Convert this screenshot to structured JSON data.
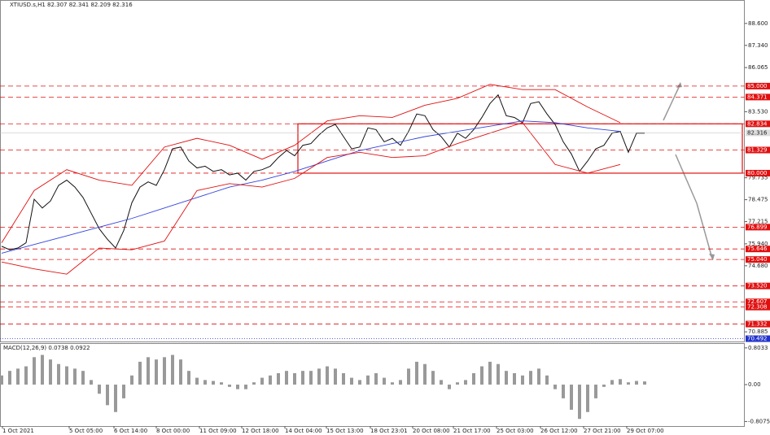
{
  "chart_data": {
    "type": "price",
    "title": "XTIUSD.s,H1  82.307 82.341 82.209 82.316",
    "xlim": [
      -0.2,
      91.3
    ],
    "ylim": [
      70.33,
      89.9
    ],
    "yticks": [
      {
        "value": 88.6,
        "label": "88.600"
      },
      {
        "value": 87.34,
        "label": "87.340"
      },
      {
        "value": 86.065,
        "label": "86.065"
      },
      {
        "value": 83.53,
        "label": "83.530"
      },
      {
        "value": 79.735,
        "label": "79.735"
      },
      {
        "value": 78.475,
        "label": "78.475"
      },
      {
        "value": 77.215,
        "label": "77.215"
      },
      {
        "value": 75.94,
        "label": "75.940"
      },
      {
        "value": 74.68,
        "label": "74.680"
      },
      {
        "value": 70.885,
        "label": "70.885"
      }
    ],
    "xticks": [
      {
        "value": 0.1,
        "label": "1 Oct 2021"
      },
      {
        "value": 8.3,
        "label": "5 Oct 05:00"
      },
      {
        "value": 13.8,
        "label": "6 Oct 14:00"
      },
      {
        "value": 19,
        "label": "8 Oct 00:00"
      },
      {
        "value": 24.3,
        "label": "11 Oct 09:00"
      },
      {
        "value": 29.5,
        "label": "12 Oct 18:00"
      },
      {
        "value": 34.8,
        "label": "14 Oct 04:00"
      },
      {
        "value": 39.9,
        "label": "15 Oct 13:00"
      },
      {
        "value": 45.3,
        "label": "18 Oct 23:01"
      },
      {
        "value": 50.5,
        "label": "20 Oct 08:00"
      },
      {
        "value": 55.5,
        "label": "21 Oct 17:00"
      },
      {
        "value": 60.8,
        "label": "25 Oct 03:00"
      },
      {
        "value": 66.2,
        "label": "26 Oct 12:00"
      },
      {
        "value": 71.5,
        "label": "27 Oct 21:00"
      },
      {
        "value": 76.8,
        "label": "29 Oct 07:00"
      }
    ],
    "last_price": {
      "value": 82.316,
      "label": "82.316"
    },
    "levels": [
      {
        "value": 85.0,
        "label": "85.000"
      },
      {
        "value": 84.371,
        "label": "84.371"
      },
      {
        "value": 82.834,
        "label": "82.834"
      },
      {
        "value": 81.329,
        "label": "81.329"
      },
      {
        "value": 80.0,
        "label": "80.000"
      },
      {
        "value": 76.899,
        "label": "76.899"
      },
      {
        "value": 75.646,
        "label": "75.646"
      },
      {
        "value": 75.04,
        "label": "75.040"
      },
      {
        "value": 73.52,
        "label": "73.520"
      },
      {
        "value": 72.607,
        "label": "72.607"
      },
      {
        "value": 72.308,
        "label": "72.308"
      },
      {
        "value": 71.332,
        "label": "71.332"
      },
      {
        "value": 70.492,
        "label": "70.492"
      }
    ],
    "level_color": "#e01010",
    "support_color": "#2233cc",
    "zone": [
      80.0,
      82.834
    ],
    "series": [
      {
        "color": "#111111",
        "x": [
          0,
          1,
          2,
          3,
          4,
          5,
          6,
          7,
          8,
          9,
          10,
          11,
          12,
          13,
          14,
          15,
          16,
          17,
          18,
          19,
          20,
          21,
          22,
          23,
          24,
          25,
          26,
          27,
          28,
          29,
          30,
          31,
          32,
          33,
          34,
          35,
          36,
          37,
          38,
          39,
          40,
          41,
          42,
          43,
          44,
          45,
          46,
          47,
          48,
          49,
          50,
          51,
          52,
          53,
          54,
          55,
          56,
          57,
          58,
          59,
          60,
          61,
          62,
          63,
          64,
          65,
          66,
          67,
          68,
          69,
          70,
          71,
          72,
          73,
          74,
          75,
          76,
          77,
          78,
          79
        ],
        "values": [
          75.8,
          75.6,
          75.7,
          76.0,
          78.5,
          78.0,
          78.4,
          79.3,
          79.6,
          79.2,
          78.6,
          77.7,
          76.8,
          76.2,
          75.7,
          76.7,
          78.3,
          79.2,
          79.5,
          79.3,
          80.2,
          81.4,
          81.5,
          80.7,
          80.3,
          80.4,
          80.1,
          80.2,
          79.9,
          80.0,
          79.6,
          80.1,
          80.2,
          80.4,
          80.9,
          81.3,
          81.0,
          81.6,
          81.7,
          82.2,
          82.6,
          82.8,
          82.1,
          81.4,
          81.5,
          82.6,
          82.5,
          81.8,
          82.0,
          81.6,
          82.4,
          83.4,
          83.3,
          82.5,
          82.1,
          81.5,
          82.3,
          82.0,
          82.5,
          83.2,
          84.0,
          84.5,
          83.3,
          83.2,
          82.9,
          84.0,
          84.1,
          83.4,
          82.8,
          81.8,
          81.1,
          80.1,
          80.7,
          81.4,
          81.6,
          82.3,
          82.4,
          81.2,
          82.3,
          82.3
        ]
      },
      {
        "color": "#3344dd",
        "x": [
          0,
          4,
          8,
          12,
          16,
          20,
          24,
          28,
          32,
          36,
          40,
          44,
          48,
          52,
          56,
          60,
          64,
          68,
          72,
          76
        ],
        "values": [
          75.4,
          75.9,
          76.4,
          76.9,
          77.4,
          78.0,
          78.6,
          79.2,
          79.6,
          80.1,
          80.7,
          81.3,
          81.7,
          82.1,
          82.4,
          82.7,
          83.0,
          82.9,
          82.6,
          82.4
        ]
      },
      {
        "color": "#e01010",
        "x": [
          0,
          4,
          8,
          12,
          16,
          20,
          24,
          28,
          32,
          36,
          40,
          44,
          48,
          52,
          56,
          60,
          64,
          68,
          72,
          76
        ],
        "values": [
          76.0,
          79.0,
          80.2,
          79.6,
          79.3,
          81.5,
          82.0,
          81.6,
          80.8,
          81.6,
          83.0,
          83.3,
          83.2,
          83.9,
          84.3,
          85.1,
          84.8,
          84.8,
          83.8,
          82.9
        ]
      },
      {
        "color": "#e01010",
        "x": [
          0,
          4,
          8,
          12,
          16,
          20,
          24,
          28,
          32,
          36,
          40,
          44,
          48,
          52,
          56,
          60,
          64,
          68,
          72,
          76
        ],
        "values": [
          74.9,
          74.5,
          74.2,
          75.7,
          75.6,
          76.1,
          79.0,
          79.4,
          79.2,
          79.7,
          80.9,
          81.2,
          80.9,
          81.0,
          81.7,
          82.3,
          82.9,
          80.5,
          80.0,
          80.5
        ]
      }
    ],
    "macd": {
      "title": "MACD(12,26,9) 0.0738 0.0922",
      "ylim": [
        -0.907,
        0.89
      ],
      "yticks": [
        {
          "value": 0.8033,
          "label": "0.8033"
        },
        {
          "value": 0,
          "label": "0.00"
        },
        {
          "value": -0.8075,
          "label": "-0.8075"
        }
      ],
      "color": "#999999",
      "values": [
        0.2,
        0.3,
        0.35,
        0.4,
        0.6,
        0.65,
        0.55,
        0.45,
        0.4,
        0.35,
        0.3,
        0.1,
        -0.2,
        -0.45,
        -0.6,
        -0.3,
        0.2,
        0.5,
        0.6,
        0.55,
        0.6,
        0.65,
        0.55,
        0.3,
        0.15,
        0.1,
        0.08,
        0.05,
        -0.05,
        -0.1,
        -0.1,
        0.05,
        0.15,
        0.2,
        0.25,
        0.3,
        0.25,
        0.3,
        0.3,
        0.35,
        0.4,
        0.35,
        0.25,
        0.15,
        0.1,
        0.2,
        0.25,
        0.15,
        0.05,
        0.1,
        0.35,
        0.5,
        0.45,
        0.3,
        0.1,
        -0.1,
        0.05,
        0.1,
        0.25,
        0.4,
        0.5,
        0.45,
        0.3,
        0.25,
        0.2,
        0.3,
        0.35,
        0.2,
        -0.1,
        -0.3,
        -0.55,
        -0.75,
        -0.6,
        -0.3,
        -0.05,
        0.1,
        0.12,
        0.05,
        0.08,
        0.07
      ]
    }
  }
}
